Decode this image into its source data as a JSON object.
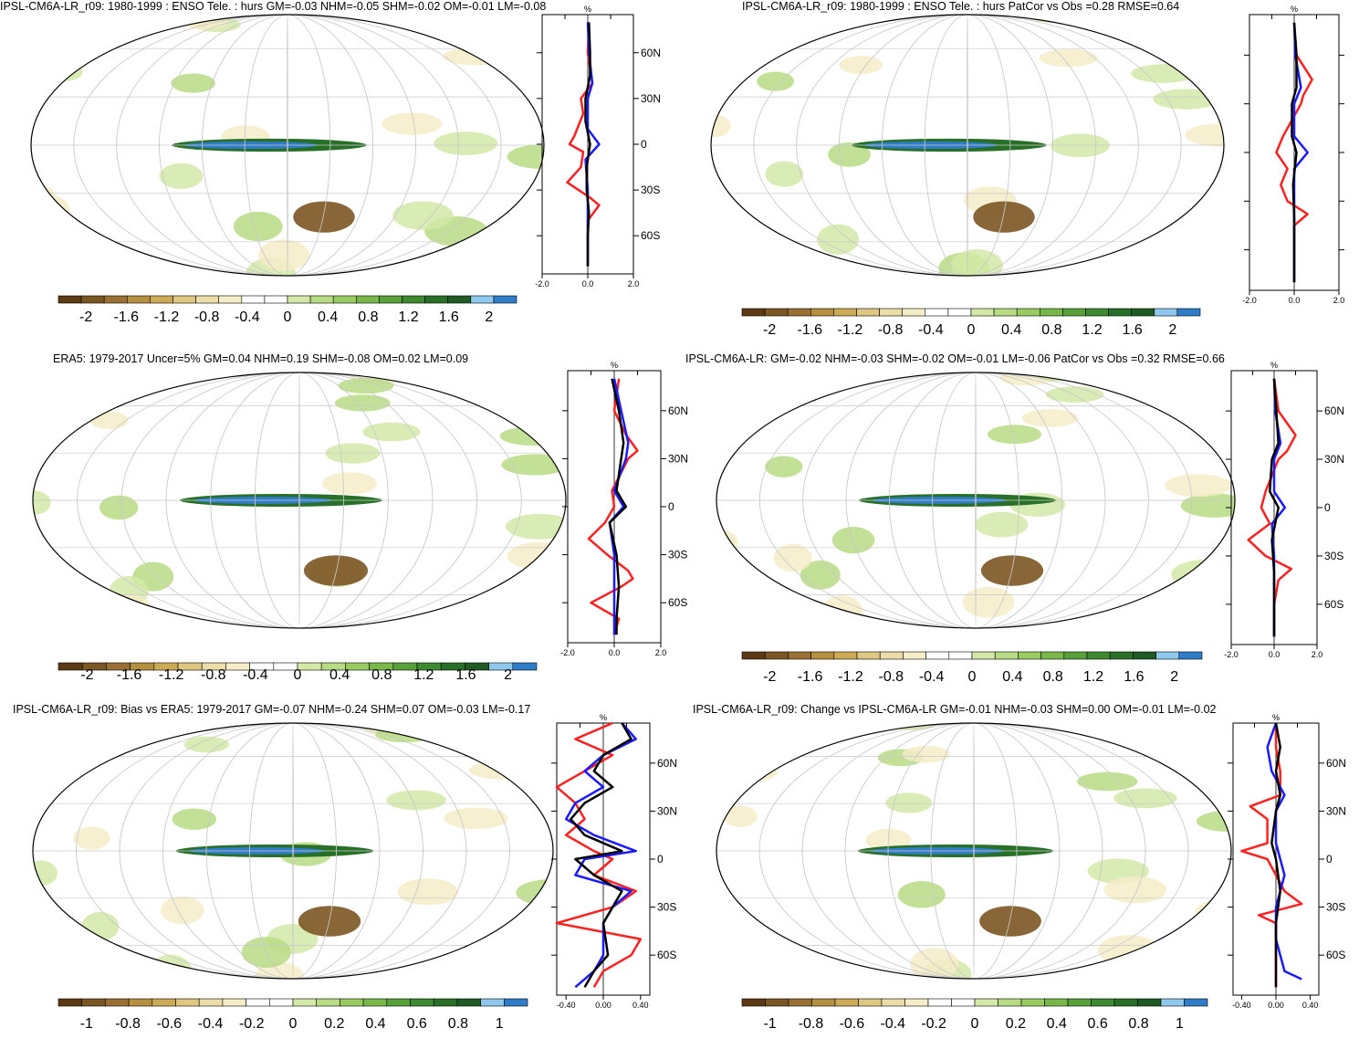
{
  "palette": [
    "#5c3a14",
    "#7b5522",
    "#9a7032",
    "#b59040",
    "#cdaa55",
    "#dfc782",
    "#ecdda8",
    "#f5ecc8",
    "#ffffff",
    "#ffffff",
    "#d4e9a8",
    "#b8dc84",
    "#98cb62",
    "#78b84a",
    "#58a03a",
    "#3d8a30",
    "#287028",
    "#1e5a22",
    "#8ec8ec",
    "#2f7cc8"
  ],
  "panels": [
    {
      "title": "IPSL-CM6A-LR_r09: 1980-1999 : ENSO Tele. : hurs GM=-0.03 NHM=-0.05 SHM=-0.02 OM=-0.01 LM=-0.08",
      "colorbar": {
        "labels": [
          "-2",
          "-1.6",
          "-1.2",
          "-0.8",
          "-0.4",
          "0",
          "0.4",
          "0.8",
          "1.2",
          "1.6",
          "2"
        ]
      },
      "profile": {
        "unit": "%",
        "xlim": [
          -2,
          2
        ],
        "xticks": [
          "-2.0",
          "0.0",
          "2.0"
        ],
        "lat_labels": [
          "60N",
          "30N",
          "0",
          "30S",
          "60S"
        ],
        "black": [
          [
            80,
            0.05
          ],
          [
            60,
            0.1
          ],
          [
            45,
            0.1
          ],
          [
            30,
            -0.1
          ],
          [
            15,
            -0.1
          ],
          [
            0,
            0.1
          ],
          [
            -15,
            -0.05
          ],
          [
            -30,
            -0.05
          ],
          [
            -45,
            0.05
          ],
          [
            -60,
            0
          ],
          [
            -80,
            0
          ]
        ],
        "blue": [
          [
            80,
            0
          ],
          [
            60,
            0.05
          ],
          [
            40,
            0.2
          ],
          [
            30,
            0
          ],
          [
            10,
            0
          ],
          [
            0,
            0.5
          ],
          [
            -10,
            -0.1
          ],
          [
            -30,
            0
          ],
          [
            -50,
            0
          ],
          [
            -80,
            0
          ]
        ],
        "red": [
          [
            80,
            0.05
          ],
          [
            60,
            0
          ],
          [
            40,
            0.2
          ],
          [
            30,
            -0.3
          ],
          [
            20,
            -0.2
          ],
          [
            5,
            -0.6
          ],
          [
            0,
            -0.8
          ],
          [
            -5,
            -0.2
          ],
          [
            -15,
            -0.3
          ],
          [
            -25,
            -0.9
          ],
          [
            -35,
            0.1
          ],
          [
            -40,
            0.5
          ],
          [
            -50,
            0
          ],
          [
            -80,
            0
          ]
        ]
      }
    },
    {
      "title": "IPSL-CM6A-LR_r09: 1980-1999 : ENSO Tele. : hurs PatCor vs Obs =0.28 RMSE=0.64",
      "colorbar": {
        "labels": [
          "-2",
          "-1.6",
          "-1.2",
          "-0.8",
          "-0.4",
          "0",
          "0.4",
          "0.8",
          "1.2",
          "1.6",
          "2"
        ]
      },
      "profile": {
        "unit": "%",
        "xlim": [
          -2,
          2
        ],
        "xticks": [
          "-2.0",
          "0.0",
          "2.0"
        ],
        "lat_labels": [],
        "black": [
          [
            80,
            0
          ],
          [
            60,
            0.1
          ],
          [
            40,
            0.1
          ],
          [
            30,
            -0.1
          ],
          [
            10,
            -0.1
          ],
          [
            0,
            0.1
          ],
          [
            -20,
            -0.05
          ],
          [
            -40,
            0
          ],
          [
            -60,
            0
          ],
          [
            -80,
            0
          ]
        ],
        "blue": [
          [
            80,
            0
          ],
          [
            60,
            0.05
          ],
          [
            40,
            0.3
          ],
          [
            30,
            0
          ],
          [
            10,
            0
          ],
          [
            0,
            0.6
          ],
          [
            -10,
            0
          ],
          [
            -30,
            0
          ],
          [
            -60,
            0
          ],
          [
            -80,
            0
          ]
        ],
        "red": [
          [
            80,
            0
          ],
          [
            60,
            0.1
          ],
          [
            45,
            0.8
          ],
          [
            35,
            0.4
          ],
          [
            30,
            0.3
          ],
          [
            10,
            -0.5
          ],
          [
            0,
            -0.8
          ],
          [
            -10,
            -0.3
          ],
          [
            -20,
            -0.6
          ],
          [
            -30,
            -0.3
          ],
          [
            -38,
            0.6
          ],
          [
            -45,
            0
          ],
          [
            -60,
            0
          ],
          [
            -80,
            0
          ]
        ]
      }
    },
    {
      "title": "ERA5: 1979-2017 Uncer=5% GM=0.04 NHM=0.19 SHM=-0.08 OM=0.02 LM=0.09",
      "colorbar": {
        "labels": [
          "-2",
          "-1.6",
          "-1.2",
          "-0.8",
          "-0.4",
          "0",
          "0.4",
          "0.8",
          "1.2",
          "1.6",
          "2"
        ]
      },
      "profile": {
        "unit": "%",
        "xlim": [
          -2,
          2
        ],
        "xticks": [
          "-2.0",
          "0.0",
          "2.0"
        ],
        "lat_labels": [
          "60N",
          "30N",
          "0",
          "30S",
          "60S"
        ],
        "black": [
          [
            80,
            -0.1
          ],
          [
            60,
            0.2
          ],
          [
            40,
            0.4
          ],
          [
            30,
            0.3
          ],
          [
            10,
            0.1
          ],
          [
            0,
            0.5
          ],
          [
            -10,
            -0.2
          ],
          [
            -30,
            0.1
          ],
          [
            -50,
            0.2
          ],
          [
            -70,
            0.1
          ],
          [
            -80,
            0.1
          ]
        ],
        "blue": [
          [
            80,
            0
          ],
          [
            60,
            0.3
          ],
          [
            40,
            0.6
          ],
          [
            30,
            0.5
          ],
          [
            10,
            0
          ],
          [
            0,
            0.4
          ],
          [
            -10,
            -0.2
          ],
          [
            -30,
            0
          ],
          [
            -60,
            0
          ],
          [
            -80,
            0
          ]
        ],
        "red": [
          [
            80,
            0.2
          ],
          [
            60,
            0
          ],
          [
            45,
            0.5
          ],
          [
            35,
            1.0
          ],
          [
            30,
            0.6
          ],
          [
            10,
            -0.1
          ],
          [
            0,
            0
          ],
          [
            -10,
            -0.4
          ],
          [
            -20,
            -1.1
          ],
          [
            -30,
            -0.3
          ],
          [
            -40,
            0.6
          ],
          [
            -45,
            0.8
          ],
          [
            -50,
            0.3
          ],
          [
            -60,
            -1.0
          ],
          [
            -70,
            0.2
          ],
          [
            -80,
            0
          ]
        ]
      }
    },
    {
      "title": "IPSL-CM6A-LR: GM=-0.02 NHM=-0.03 SHM=-0.02 OM=-0.01 LM=-0.06 PatCor vs Obs =0.32 RMSE=0.66",
      "colorbar": {
        "labels": [
          "-2",
          "-1.6",
          "-1.2",
          "-0.8",
          "-0.4",
          "0",
          "0.4",
          "0.8",
          "1.2",
          "1.6",
          "2"
        ]
      },
      "profile": {
        "unit": "%",
        "xlim": [
          -2,
          2
        ],
        "xticks": [
          "-2.0",
          "0.0",
          "2.0"
        ],
        "lat_labels": [
          "60N",
          "30N",
          "0",
          "30S",
          "60S"
        ],
        "black": [
          [
            80,
            0
          ],
          [
            60,
            0.1
          ],
          [
            40,
            0.2
          ],
          [
            30,
            -0.1
          ],
          [
            10,
            -0.2
          ],
          [
            0,
            0.2
          ],
          [
            -20,
            -0.1
          ],
          [
            -40,
            0
          ],
          [
            -60,
            0
          ],
          [
            -80,
            0
          ]
        ],
        "blue": [
          [
            80,
            0
          ],
          [
            60,
            0.05
          ],
          [
            40,
            0.3
          ],
          [
            30,
            0
          ],
          [
            10,
            0
          ],
          [
            0,
            0.5
          ],
          [
            -10,
            -0.1
          ],
          [
            -30,
            0
          ],
          [
            -60,
            0
          ],
          [
            -80,
            0
          ]
        ],
        "red": [
          [
            80,
            0
          ],
          [
            60,
            0.2
          ],
          [
            45,
            1.0
          ],
          [
            35,
            0.6
          ],
          [
            30,
            0.2
          ],
          [
            10,
            -0.4
          ],
          [
            0,
            -0.6
          ],
          [
            -10,
            -0.2
          ],
          [
            -20,
            -1.2
          ],
          [
            -30,
            -0.4
          ],
          [
            -38,
            0.8
          ],
          [
            -45,
            0.2
          ],
          [
            -60,
            0
          ],
          [
            -80,
            0
          ]
        ]
      }
    },
    {
      "title": "IPSL-CM6A-LR_r09: Bias vs ERA5: 1979-2017 GM=-0.07 NHM=-0.24 SHM=0.07 OM=-0.03 LM=-0.17",
      "colorbar": {
        "labels": [
          "-1",
          "-0.8",
          "-0.6",
          "-0.4",
          "-0.2",
          "0",
          "0.2",
          "0.4",
          "0.6",
          "0.8",
          "1"
        ]
      },
      "profile": {
        "unit": "%",
        "xlim": [
          -0.5,
          0.5
        ],
        "xticks": [
          "-0.40",
          "0.00",
          "0.40"
        ],
        "lat_labels": [
          "60N",
          "30N",
          "0",
          "30S",
          "60S"
        ],
        "black": [
          [
            85,
            0.2
          ],
          [
            75,
            0.3
          ],
          [
            65,
            0
          ],
          [
            55,
            -0.1
          ],
          [
            45,
            0.1
          ],
          [
            35,
            -0.2
          ],
          [
            25,
            -0.35
          ],
          [
            15,
            -0.2
          ],
          [
            5,
            0.2
          ],
          [
            0,
            -0.3
          ],
          [
            -10,
            -0.1
          ],
          [
            -20,
            0.2
          ],
          [
            -30,
            0.1
          ],
          [
            -40,
            0
          ],
          [
            -60,
            0.05
          ],
          [
            -70,
            -0.1
          ],
          [
            -80,
            -0.2
          ]
        ],
        "blue": [
          [
            85,
            0.2
          ],
          [
            75,
            0.35
          ],
          [
            65,
            0
          ],
          [
            55,
            -0.2
          ],
          [
            45,
            0
          ],
          [
            35,
            -0.3
          ],
          [
            25,
            -0.4
          ],
          [
            15,
            -0.1
          ],
          [
            5,
            0.35
          ],
          [
            0,
            -0.2
          ],
          [
            -10,
            -0.3
          ],
          [
            -20,
            0.3
          ],
          [
            -30,
            0.1
          ],
          [
            -40,
            0
          ],
          [
            -60,
            0
          ],
          [
            -70,
            -0.1
          ],
          [
            -80,
            -0.3
          ]
        ],
        "red": [
          [
            85,
            0.1
          ],
          [
            75,
            -0.3
          ],
          [
            65,
            0.1
          ],
          [
            55,
            -0.2
          ],
          [
            45,
            -0.5
          ],
          [
            35,
            -0.3
          ],
          [
            25,
            -0.2
          ],
          [
            15,
            -0.4
          ],
          [
            5,
            -0.1
          ],
          [
            0,
            0.1
          ],
          [
            -10,
            -0.1
          ],
          [
            -20,
            0.35
          ],
          [
            -30,
            0.1
          ],
          [
            -40,
            -0.5
          ],
          [
            -50,
            0.4
          ],
          [
            -60,
            0.3
          ],
          [
            -70,
            0
          ],
          [
            -80,
            -0.1
          ]
        ]
      }
    },
    {
      "title": "IPSL-CM6A-LR_r09: Change vs IPSL-CM6A-LR GM=-0.01 NHM=-0.03 SHM=0.00 OM=-0.01 LM=-0.02",
      "colorbar": {
        "labels": [
          "-1",
          "-0.8",
          "-0.6",
          "-0.4",
          "-0.2",
          "0",
          "0.2",
          "0.4",
          "0.6",
          "0.8",
          "1"
        ]
      },
      "profile": {
        "unit": "%",
        "xlim": [
          -0.5,
          0.5
        ],
        "xticks": [
          "-0.40",
          "0.00",
          "0.40"
        ],
        "lat_labels": [
          "60N",
          "30N",
          "0",
          "30S",
          "60S"
        ],
        "black": [
          [
            85,
            0
          ],
          [
            70,
            0.05
          ],
          [
            55,
            0
          ],
          [
            40,
            0.05
          ],
          [
            30,
            0
          ],
          [
            10,
            -0.05
          ],
          [
            0,
            0
          ],
          [
            -20,
            0.05
          ],
          [
            -40,
            0
          ],
          [
            -60,
            0
          ],
          [
            -80,
            0
          ]
        ],
        "blue": [
          [
            85,
            0
          ],
          [
            70,
            -0.1
          ],
          [
            55,
            -0.05
          ],
          [
            40,
            0.1
          ],
          [
            30,
            0
          ],
          [
            10,
            0
          ],
          [
            0,
            0.05
          ],
          [
            -10,
            0.1
          ],
          [
            -30,
            0
          ],
          [
            -50,
            0
          ],
          [
            -70,
            0.1
          ],
          [
            -75,
            0.3
          ]
        ],
        "red": [
          [
            85,
            0
          ],
          [
            70,
            0
          ],
          [
            55,
            0.05
          ],
          [
            40,
            0.05
          ],
          [
            33,
            -0.3
          ],
          [
            25,
            -0.1
          ],
          [
            10,
            -0.1
          ],
          [
            5,
            -0.4
          ],
          [
            0,
            -0.1
          ],
          [
            -10,
            0
          ],
          [
            -20,
            0.1
          ],
          [
            -28,
            0.3
          ],
          [
            -35,
            -0.2
          ],
          [
            -40,
            0
          ],
          [
            -60,
            0
          ],
          [
            -80,
            0
          ]
        ]
      }
    }
  ]
}
